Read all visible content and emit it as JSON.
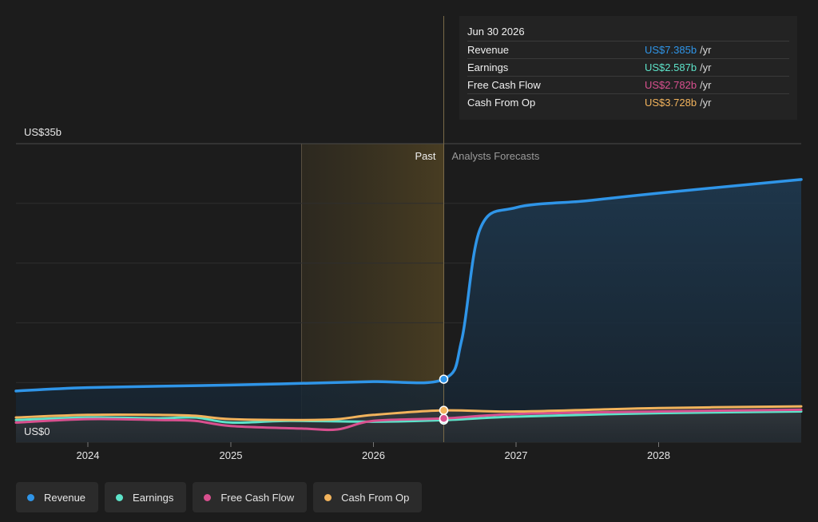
{
  "chart_data": {
    "type": "area",
    "y_max_label": "US$35b",
    "y_min_label": "US$0",
    "ylim": [
      0,
      35
    ],
    "xlim": [
      "2023-07-01",
      "2028-12-31"
    ],
    "x_ticks": [
      "2024",
      "2025",
      "2026",
      "2027",
      "2028"
    ],
    "past_label": "Past",
    "forecast_label": "Analysts Forecasts",
    "divider_date": "2026-06-30",
    "past_band_start": "2025-07-01",
    "series": [
      {
        "name": "Revenue",
        "color": "#2f95e8",
        "fill": true,
        "points": [
          [
            "2023-07-01",
            6.0
          ],
          [
            "2024-01-01",
            6.4
          ],
          [
            "2025-01-01",
            6.7
          ],
          [
            "2025-07-01",
            6.9
          ],
          [
            "2026-01-01",
            7.1
          ],
          [
            "2026-06-30",
            7.385
          ],
          [
            "2026-08-15",
            12.0
          ],
          [
            "2026-10-01",
            25.0
          ],
          [
            "2026-12-31",
            27.5
          ],
          [
            "2027-06-30",
            28.3
          ],
          [
            "2028-01-01",
            29.2
          ],
          [
            "2028-12-31",
            30.8
          ]
        ]
      },
      {
        "name": "Earnings",
        "color": "#5de3c9",
        "fill": false,
        "points": [
          [
            "2023-07-01",
            2.6
          ],
          [
            "2024-01-01",
            2.9
          ],
          [
            "2024-07-01",
            2.8
          ],
          [
            "2024-10-01",
            2.9
          ],
          [
            "2025-01-01",
            2.3
          ],
          [
            "2025-06-01",
            2.5
          ],
          [
            "2026-01-01",
            2.4
          ],
          [
            "2026-06-30",
            2.587
          ],
          [
            "2027-01-01",
            3.0
          ],
          [
            "2028-01-01",
            3.4
          ],
          [
            "2028-12-31",
            3.6
          ]
        ]
      },
      {
        "name": "Free Cash Flow",
        "color": "#d9508f",
        "fill": false,
        "points": [
          [
            "2023-07-01",
            2.3
          ],
          [
            "2024-01-01",
            2.7
          ],
          [
            "2024-07-01",
            2.6
          ],
          [
            "2024-10-01",
            2.5
          ],
          [
            "2025-01-01",
            1.9
          ],
          [
            "2025-07-01",
            1.6
          ],
          [
            "2025-10-01",
            1.5
          ],
          [
            "2026-01-01",
            2.5
          ],
          [
            "2026-06-30",
            2.782
          ],
          [
            "2027-01-01",
            3.3
          ],
          [
            "2028-01-01",
            3.6
          ],
          [
            "2028-12-31",
            3.8
          ]
        ]
      },
      {
        "name": "Cash From Op",
        "color": "#f2b35c",
        "fill": false,
        "points": [
          [
            "2023-07-01",
            2.9
          ],
          [
            "2024-01-01",
            3.2
          ],
          [
            "2024-07-01",
            3.2
          ],
          [
            "2024-10-01",
            3.1
          ],
          [
            "2025-01-01",
            2.7
          ],
          [
            "2025-07-01",
            2.6
          ],
          [
            "2025-10-01",
            2.7
          ],
          [
            "2026-01-01",
            3.2
          ],
          [
            "2026-06-30",
            3.728
          ],
          [
            "2027-01-01",
            3.6
          ],
          [
            "2028-01-01",
            4.0
          ],
          [
            "2028-12-31",
            4.2
          ]
        ]
      }
    ]
  },
  "tooltip": {
    "date": "Jun 30 2026",
    "unit": "/yr",
    "rows": [
      {
        "name": "Revenue",
        "value": "US$7.385b",
        "color": "#2f95e8"
      },
      {
        "name": "Earnings",
        "value": "US$2.587b",
        "color": "#5de3c9"
      },
      {
        "name": "Free Cash Flow",
        "value": "US$2.782b",
        "color": "#d9508f"
      },
      {
        "name": "Cash From Op",
        "value": "US$3.728b",
        "color": "#f2b35c"
      }
    ]
  },
  "legend": [
    {
      "label": "Revenue",
      "color": "#2f95e8"
    },
    {
      "label": "Earnings",
      "color": "#5de3c9"
    },
    {
      "label": "Free Cash Flow",
      "color": "#d9508f"
    },
    {
      "label": "Cash From Op",
      "color": "#f2b35c"
    }
  ]
}
